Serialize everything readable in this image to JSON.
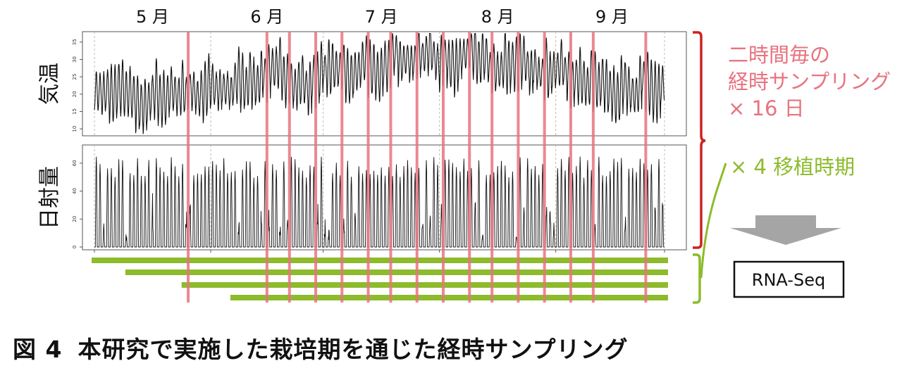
{
  "chart_data": [
    {
      "type": "line",
      "ylabel": "気温",
      "ylim": [
        8,
        38
      ],
      "yticks": [
        10,
        15,
        20,
        25,
        30,
        35
      ],
      "months": [
        "5 月",
        "6 月",
        "7 月",
        "8 月",
        "9 月"
      ],
      "x_range_days": [
        1,
        153
      ],
      "series": [
        {
          "pattern": "daily cycle (two-hourly readings)",
          "daily_mean": [
            {
              "day": 1,
              "value": 20
            },
            {
              "day": 15,
              "value": 19
            },
            {
              "day": 31,
              "value": 23
            },
            {
              "day": 45,
              "value": 24
            },
            {
              "day": 60,
              "value": 25
            },
            {
              "day": 75,
              "value": 28
            },
            {
              "day": 92,
              "value": 31
            },
            {
              "day": 105,
              "value": 30
            },
            {
              "day": 120,
              "value": 27
            },
            {
              "day": 135,
              "value": 24
            },
            {
              "day": 153,
              "value": 21
            }
          ]
        }
      ]
    },
    {
      "type": "line",
      "ylabel": "日射量",
      "ylim": [
        -2,
        73
      ],
      "yticks": [
        0,
        20,
        40,
        60
      ],
      "x_range_days": [
        1,
        153
      ],
      "series": [
        {
          "pattern": "daily peak, zero at night",
          "daily_peak_approx": 57
        }
      ]
    }
  ],
  "sampling_days": [
    26,
    47,
    53,
    60,
    67,
    74,
    80,
    87,
    94,
    101,
    107,
    114,
    121,
    128,
    134,
    148
  ],
  "transplant_start_days": [
    1,
    10,
    25,
    38
  ],
  "transplant_end_day": 153,
  "annotations": {
    "sampling_line1": "二時間毎の",
    "sampling_line2": "経時サンプリング",
    "sampling_line3": "× 16 日",
    "transplant": "× 4 移植時期",
    "rnaseq": "RNA-Seq"
  },
  "caption": {
    "number": "図 4",
    "text": "本研究で実施した栽培期を通じた経時サンプリング"
  },
  "colors": {
    "sampling_line": "#e8737f",
    "transplant_bar": "#8dbb2c",
    "bracket_red": "#cc2222",
    "bracket_green": "#8dbb2c",
    "arrow": "#a0a0a0",
    "trace": "#111111"
  }
}
